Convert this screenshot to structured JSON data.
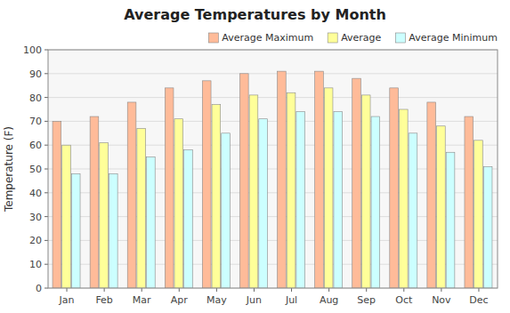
{
  "chart_data": {
    "type": "bar",
    "title": "Average Temperatures by Month",
    "ylabel": "Temperature (F)",
    "categories": [
      "Jan",
      "Feb",
      "Mar",
      "Apr",
      "May",
      "Jun",
      "Jul",
      "Aug",
      "Sep",
      "Oct",
      "Nov",
      "Dec"
    ],
    "series": [
      {
        "name": "Average Maximum",
        "color": "#FFBB99",
        "values": [
          70,
          72,
          78,
          84,
          87,
          90,
          91,
          91,
          88,
          84,
          78,
          72
        ]
      },
      {
        "name": "Average",
        "color": "#FFFF99",
        "values": [
          60,
          61,
          67,
          71,
          77,
          81,
          82,
          84,
          81,
          75,
          68,
          62
        ]
      },
      {
        "name": "Average Minimum",
        "color": "#CCFFFF",
        "values": [
          48,
          48,
          55,
          58,
          65,
          71,
          74,
          74,
          72,
          65,
          57,
          51
        ]
      }
    ],
    "ylim": [
      0,
      100
    ],
    "yticks": [
      0,
      10,
      20,
      30,
      40,
      50,
      60,
      70,
      80,
      90,
      100
    ],
    "grid": true,
    "legend": "upper right"
  }
}
